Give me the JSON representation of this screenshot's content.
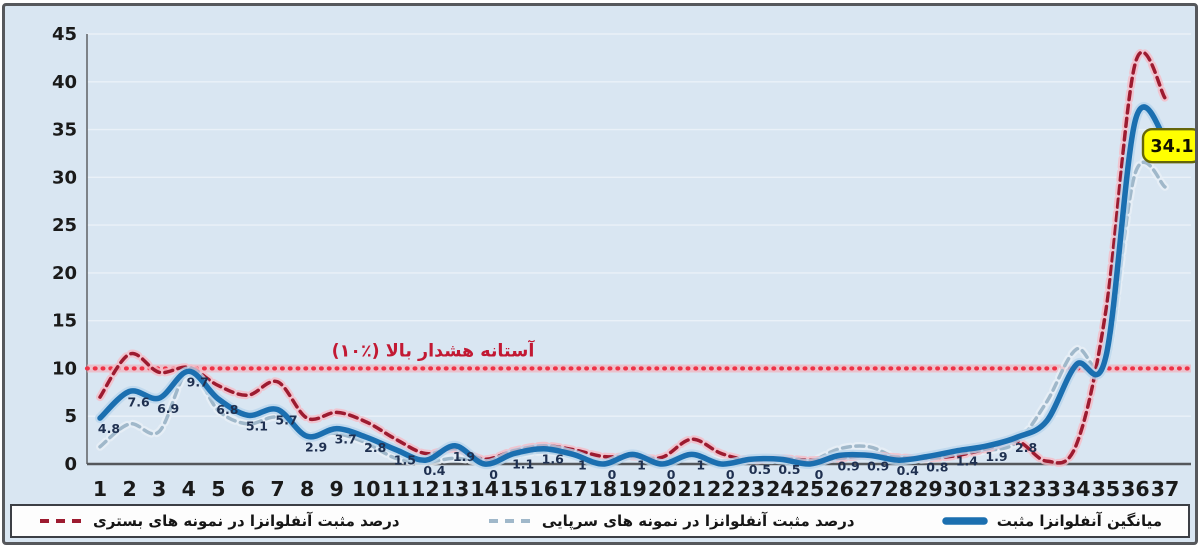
{
  "chart_data": {
    "type": "line",
    "title": "",
    "xlabel": "",
    "ylabel": "",
    "x": [
      1,
      2,
      3,
      4,
      5,
      6,
      7,
      8,
      9,
      10,
      11,
      12,
      13,
      14,
      15,
      16,
      17,
      18,
      19,
      20,
      21,
      22,
      23,
      24,
      25,
      26,
      27,
      28,
      29,
      30,
      31,
      32,
      33,
      34,
      35,
      36,
      37
    ],
    "ylim": [
      0,
      45
    ],
    "yticks": [
      0,
      5,
      10,
      15,
      20,
      25,
      30,
      35,
      40,
      45
    ],
    "grid": true,
    "legend_position": "bottom",
    "background": "#d9e6f2",
    "gridline_color": "#eaf1f8",
    "axis_text_color": "#1a1a1a",
    "label_color": "#1f3050",
    "series": [
      {
        "name": "میانگین آنفلوانزا مثبت",
        "style": "solid",
        "color": "#1b6fb0",
        "glow": "#b9d6ec",
        "width": 5.5,
        "values": [
          4.8,
          7.6,
          6.9,
          9.7,
          6.8,
          5.1,
          5.7,
          2.9,
          3.7,
          2.8,
          1.5,
          0.4,
          1.9,
          0,
          1.1,
          1.6,
          1,
          0,
          1,
          0,
          1,
          0,
          0.5,
          0.5,
          0,
          0.9,
          0.9,
          0.4,
          0.8,
          1.4,
          1.9,
          2.8,
          4.5,
          10.4,
          11.2,
          36,
          34.1
        ],
        "point_labels": [
          "4.8",
          "7.6",
          "6.9",
          "9.7",
          "6.8",
          "5.1",
          "5.7",
          "2.9",
          "3.7",
          "2.8",
          "1.5",
          "0.4",
          "1.9",
          "0",
          "1.1",
          "1.6",
          "1",
          "0",
          "1",
          "0",
          "1",
          "0",
          "0.5",
          "0.5",
          "0",
          "0.9",
          "0.9",
          "0.4",
          "0.8",
          "1.4",
          "1.9",
          "2.8",
          null,
          null,
          null,
          null,
          null
        ]
      },
      {
        "name": "درصد مثبت آنفلوانزا در نمونه های سرپایی",
        "style": "dashed",
        "color": "#a0b8ca",
        "glow": "#e9f0f6",
        "width": 3.5,
        "values": [
          1.8,
          4.2,
          3.4,
          9.8,
          5.6,
          4.2,
          4.9,
          3.1,
          3.2,
          2.2,
          0.6,
          0.2,
          0.6,
          0.2,
          0.9,
          1.3,
          0.9,
          0.5,
          0.9,
          0.4,
          0.9,
          0.3,
          0.4,
          0.4,
          0.3,
          1.6,
          1.8,
          0.6,
          0.5,
          1.1,
          1.4,
          2.3,
          6.5,
          12,
          10.8,
          30.5,
          29
        ]
      },
      {
        "name": "درصد مثبت آنفلوانزا در نمونه های بستری",
        "style": "dashed",
        "color": "#9d1b30",
        "glow": "#f5bcc5",
        "width": 3.5,
        "values": [
          7,
          11.5,
          9.6,
          10.1,
          8.2,
          7.2,
          8.6,
          4.8,
          5.4,
          4.4,
          2.6,
          1.1,
          1.6,
          0.5,
          1.4,
          1.9,
          1.5,
          0.8,
          0.8,
          0.7,
          2.6,
          1.1,
          0.4,
          0.6,
          0.4,
          0.6,
          0.9,
          0.7,
          0.6,
          0.9,
          1.6,
          2.4,
          0.3,
          2,
          16,
          42,
          38.3
        ]
      }
    ],
    "threshold_line": {
      "value": 10,
      "label": "آستانه هشدار بالا (٪۱۰)",
      "color": "#ee3347",
      "glow": "#f6aab4",
      "text_color": "#c21933"
    },
    "callout": {
      "text": "34.1",
      "week": 37,
      "value": 34.1,
      "bg": "#ffff00",
      "border": "#65650a",
      "text_color": "#111100"
    }
  }
}
